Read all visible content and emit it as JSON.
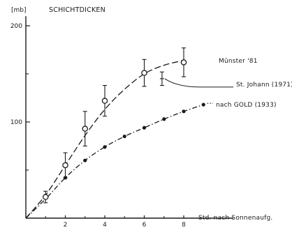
{
  "chart_data": {
    "type": "line",
    "title": "SCHICHTDICKEN",
    "ylabel": "[mb]",
    "xlabel": "Std. nach Sonnenaufg.",
    "xlim": [
      0,
      10.5
    ],
    "ylim": [
      0,
      210
    ],
    "y_ticks": [
      {
        "value": 100,
        "label": "100"
      },
      {
        "value": 200,
        "label": "200"
      }
    ],
    "y_minor_ticks": [
      50,
      150
    ],
    "x_ticks": [
      {
        "value": 2,
        "label": "2"
      },
      {
        "value": 4,
        "label": "4"
      },
      {
        "value": 6,
        "label": "6"
      },
      {
        "value": 8,
        "label": "8"
      }
    ],
    "x_minor_ticks": [
      1,
      3,
      5,
      7
    ],
    "grid": false,
    "series": [
      {
        "name": "Münster '81",
        "style": "dashed-open-circle-errorbar",
        "points": [
          {
            "x": 1,
            "y": 22,
            "err": 6
          },
          {
            "x": 2,
            "y": 55,
            "err": 13
          },
          {
            "x": 3,
            "y": 93,
            "err": 18
          },
          {
            "x": 4,
            "y": 122,
            "err": 16
          },
          {
            "x": 6,
            "y": 151,
            "err": 14
          },
          {
            "x": 8,
            "y": 162,
            "err": 15
          }
        ],
        "curve": [
          [
            0,
            0
          ],
          [
            1,
            24
          ],
          [
            2,
            55
          ],
          [
            3,
            86
          ],
          [
            4,
            113
          ],
          [
            5,
            134
          ],
          [
            6,
            150
          ],
          [
            7,
            159
          ],
          [
            8,
            164
          ]
        ]
      },
      {
        "name": "St. Johann (1971)",
        "style": "single-point-errorbar",
        "points": [
          {
            "x": 6.9,
            "y": 145,
            "err": 7
          }
        ]
      },
      {
        "name": "nach GOLD (1933)",
        "style": "dash-dot-filled-circle",
        "points": [
          {
            "x": 2,
            "y": 42
          },
          {
            "x": 3,
            "y": 60
          },
          {
            "x": 4,
            "y": 74
          },
          {
            "x": 5,
            "y": 85
          },
          {
            "x": 6,
            "y": 94
          },
          {
            "x": 7,
            "y": 103
          },
          {
            "x": 8,
            "y": 111
          },
          {
            "x": 9,
            "y": 118
          }
        ],
        "curve": [
          [
            0,
            0
          ],
          [
            1,
            20
          ],
          [
            2,
            42
          ],
          [
            3,
            60
          ],
          [
            4,
            74
          ],
          [
            5,
            85
          ],
          [
            6,
            94
          ],
          [
            7,
            103
          ],
          [
            8,
            111
          ],
          [
            9,
            118
          ]
        ]
      }
    ],
    "annotations": [
      {
        "text": "Münster '81",
        "series": 0
      },
      {
        "text": "St. Johann (1971)",
        "series": 1
      },
      {
        "text": "nach GOLD (1933)",
        "series": 2
      }
    ]
  }
}
